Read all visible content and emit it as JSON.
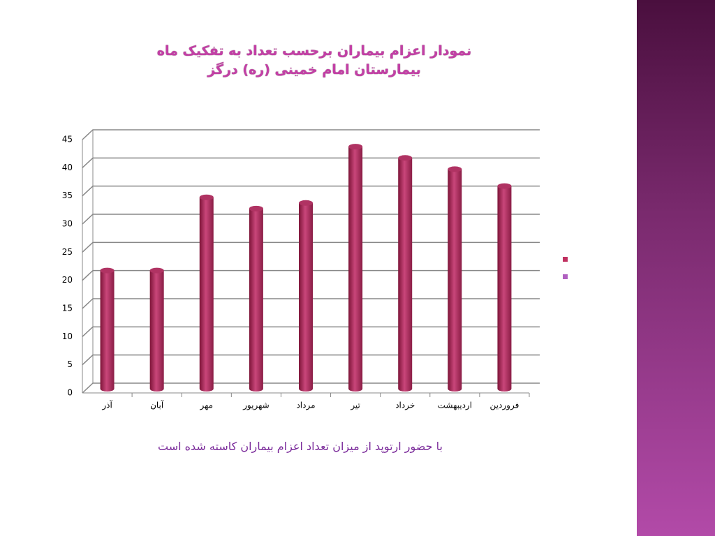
{
  "chart_data": {
    "type": "bar",
    "title": [
      "نمودار اعزام بیماران برحسب تعداد به تفکیک ماه",
      "بیمارستان امام خمینی (ره) درگز"
    ],
    "categories": [
      "آذر",
      "آبان",
      "مهر",
      "شهریور",
      "مرداد",
      "تیر",
      "خرداد",
      "اردیبهشت",
      "فروردین"
    ],
    "values": [
      21,
      21,
      34,
      32,
      33,
      43,
      41,
      39,
      36
    ],
    "color": "#b03363",
    "ylim": [
      0,
      45
    ],
    "yticks": [
      0,
      5,
      10,
      15,
      20,
      25,
      30,
      35,
      40,
      45
    ],
    "grid": true,
    "note": "با حضور ارتوپد از میزان تعداد اعزام بیماران کاسته شده است"
  }
}
